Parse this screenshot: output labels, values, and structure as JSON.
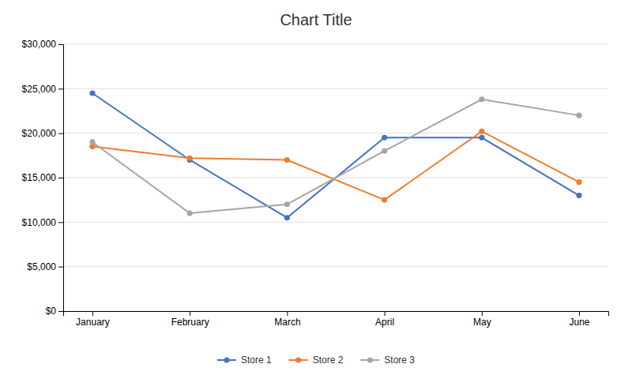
{
  "chart_data": {
    "type": "line",
    "title": "Chart Title",
    "categories": [
      "January",
      "February",
      "March",
      "April",
      "May",
      "June"
    ],
    "series": [
      {
        "name": "Store 1",
        "values": [
          24500,
          17000,
          10500,
          19500,
          19500,
          13000
        ],
        "color": "#4472C4",
        "marker": "circle"
      },
      {
        "name": "Store 2",
        "values": [
          18500,
          17200,
          17000,
          12500,
          20200,
          14500
        ],
        "color": "#ED7D31",
        "marker": "circle"
      },
      {
        "name": "Store 3",
        "values": [
          19000,
          11000,
          12000,
          18000,
          23800,
          22000
        ],
        "color": "#A5A5A5",
        "marker": "circle"
      }
    ],
    "ylim": [
      0,
      30000
    ],
    "yticks": [
      {
        "value": 0,
        "label": "$0"
      },
      {
        "value": 5000,
        "label": "$5,000"
      },
      {
        "value": 10000,
        "label": "$10,000"
      },
      {
        "value": 15000,
        "label": "$15,000"
      },
      {
        "value": 20000,
        "label": "$20,000"
      },
      {
        "value": 25000,
        "label": "$25,000"
      },
      {
        "value": 30000,
        "label": "$30,000"
      }
    ],
    "grid": true,
    "legend": "bottom"
  }
}
